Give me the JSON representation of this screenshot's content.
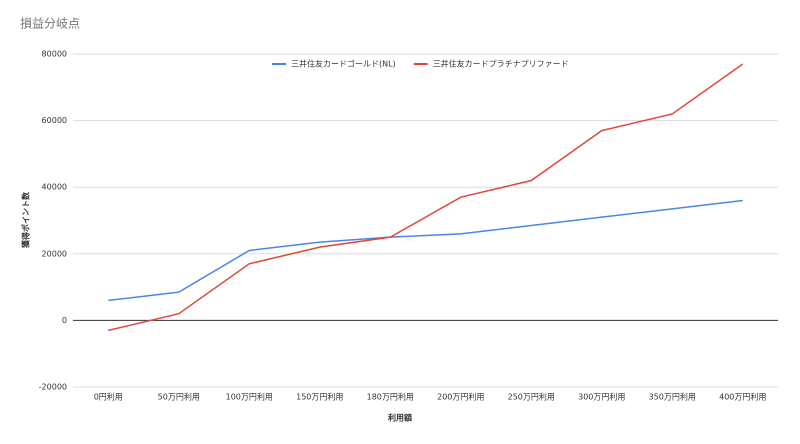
{
  "chart_data": {
    "type": "line",
    "title": "損益分岐点",
    "x_label": "利用額",
    "y_label": "獲得ポイント数",
    "categories": [
      "0円利用",
      "50万円利用",
      "100万円利用",
      "150万円利用",
      "180万円利用",
      "200万円利用",
      "250万円利用",
      "300万円利用",
      "350万円利用",
      "400万円利用"
    ],
    "series": [
      {
        "name": "三井住友カードゴールド(NL)",
        "color": "#4a86e8",
        "values": [
          6000,
          8500,
          21000,
          23500,
          25000,
          26000,
          28500,
          31000,
          33500,
          36000
        ]
      },
      {
        "name": "三井住友カードプラチナプリファード",
        "color": "#e0483e",
        "values": [
          -3000,
          2000,
          17000,
          22000,
          25000,
          37000,
          42000,
          57000,
          62000,
          77000
        ]
      }
    ],
    "ylim": [
      -20000,
      80000
    ],
    "yticks": [
      -20000,
      0,
      20000,
      40000,
      60000,
      80000
    ],
    "grid": true,
    "legend": "top"
  }
}
